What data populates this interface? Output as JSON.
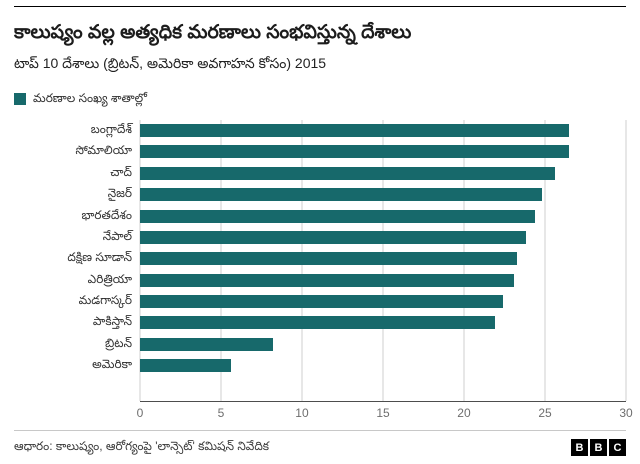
{
  "header": {
    "title": "కాలుష్యం వల్ల అత్యధిక మరణాలు సంభవిస్తున్న దేశాలు",
    "subtitle": "టాప్ 10 దేశాలు (బ్రిటన్, అమెరికా అవగాహన కోసం) 2015",
    "legend_label": "మరణాల సంఖ్య శాతాల్లో"
  },
  "chart_data": {
    "type": "bar",
    "orientation": "horizontal",
    "title": "కాలుష్యం వల్ల అత్యధిక మరణాలు సంభవిస్తున్న దేశాలు",
    "subtitle": "టాప్ 10 దేశాలు (బ్రిటన్, అమెరికా అవగాహన కోసం) 2015",
    "legend": "మరణాల సంఖ్య శాతాల్లో",
    "legend_position": "top-left",
    "grid": true,
    "categories": [
      "బంగ్లాదేశ్",
      "సోమాలియా",
      "చాద్",
      "నైజర్",
      "భారతదేశం",
      "నేపాల్",
      "దక్షిణ సూడాన్",
      "ఎరిత్రియా",
      "మడగాస్కర్",
      "పాకిస్తాన్",
      "బ్రిటన్",
      "అమెరికా"
    ],
    "values": [
      26.5,
      26.5,
      25.6,
      24.8,
      24.4,
      23.8,
      23.3,
      23.1,
      22.4,
      21.9,
      8.2,
      5.6
    ],
    "xlabel": "",
    "ylabel": "",
    "xlim": [
      0,
      30
    ],
    "xticks": [
      0,
      5,
      10,
      15,
      20,
      25,
      30
    ],
    "bar_color": "#17696b"
  },
  "footer": {
    "source": "ఆధారం: కాలుష్యం, ఆరోగ్యంపై 'లాన్సెట్' కమిషన్ నివేదిక",
    "logo_letters": [
      "B",
      "B",
      "C"
    ]
  }
}
